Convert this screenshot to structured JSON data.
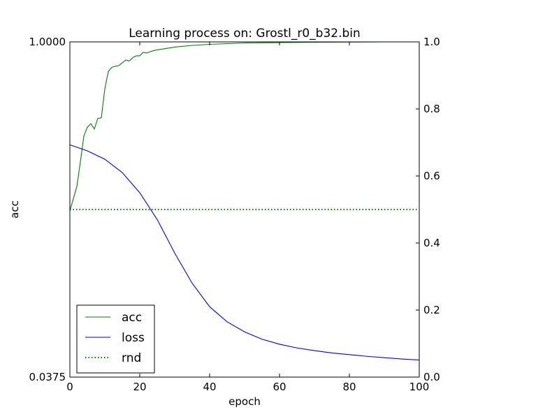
{
  "chart_data": {
    "type": "line",
    "title": "Learning process on: Grostl_r0_b32.bin",
    "xlabel": "epoch",
    "ylabel": "acc",
    "xlim": [
      0,
      100
    ],
    "ylim_left": [
      0.0375,
      1.0
    ],
    "ylim_right": [
      0.0,
      1.0
    ],
    "x_ticks": [
      "0",
      "20",
      "40",
      "60",
      "80",
      "100"
    ],
    "y_left_ticks": [
      "1.0000",
      "0.0375"
    ],
    "y_right_ticks": [
      "0.0",
      "0.2",
      "0.4",
      "0.6",
      "0.8",
      "1.0"
    ],
    "grid": false,
    "legend_position": "bottom-left",
    "series": [
      {
        "name": "acc",
        "axis": "left",
        "color": "#008000",
        "style": "solid",
        "x": [
          0,
          1,
          2,
          3,
          4,
          5,
          6,
          7,
          8,
          9,
          10,
          11,
          12,
          13,
          14,
          15,
          16,
          17,
          18,
          19,
          20,
          21,
          22,
          23,
          24,
          25,
          30,
          35,
          40,
          45,
          50,
          60,
          70,
          80,
          90,
          100
        ],
        "values": [
          0.515,
          0.55,
          0.585,
          0.655,
          0.73,
          0.755,
          0.765,
          0.75,
          0.78,
          0.782,
          0.865,
          0.915,
          0.927,
          0.93,
          0.932,
          0.94,
          0.948,
          0.945,
          0.955,
          0.96,
          0.96,
          0.97,
          0.968,
          0.972,
          0.975,
          0.977,
          0.985,
          0.99,
          0.993,
          0.995,
          0.997,
          0.998,
          0.999,
          0.9995,
          1.0,
          1.0
        ]
      },
      {
        "name": "loss",
        "axis": "right",
        "color": "#0000ff",
        "style": "solid",
        "x": [
          0,
          5,
          10,
          15,
          20,
          25,
          30,
          35,
          40,
          45,
          50,
          55,
          60,
          65,
          70,
          75,
          80,
          85,
          90,
          95,
          100
        ],
        "values": [
          0.693,
          0.675,
          0.65,
          0.61,
          0.55,
          0.47,
          0.37,
          0.28,
          0.21,
          0.165,
          0.135,
          0.113,
          0.098,
          0.087,
          0.079,
          0.072,
          0.067,
          0.062,
          0.058,
          0.054,
          0.051
        ]
      },
      {
        "name": "rnd",
        "axis": "right",
        "color": "#008000",
        "style": "dotted",
        "x": [
          0,
          100
        ],
        "values": [
          0.5,
          0.5
        ]
      },
      {
        "name": "",
        "axis": "left",
        "color": "#000000",
        "style": "dotted",
        "x": [
          0,
          100
        ],
        "values": [
          0.0375,
          0.0375
        ]
      }
    ]
  }
}
